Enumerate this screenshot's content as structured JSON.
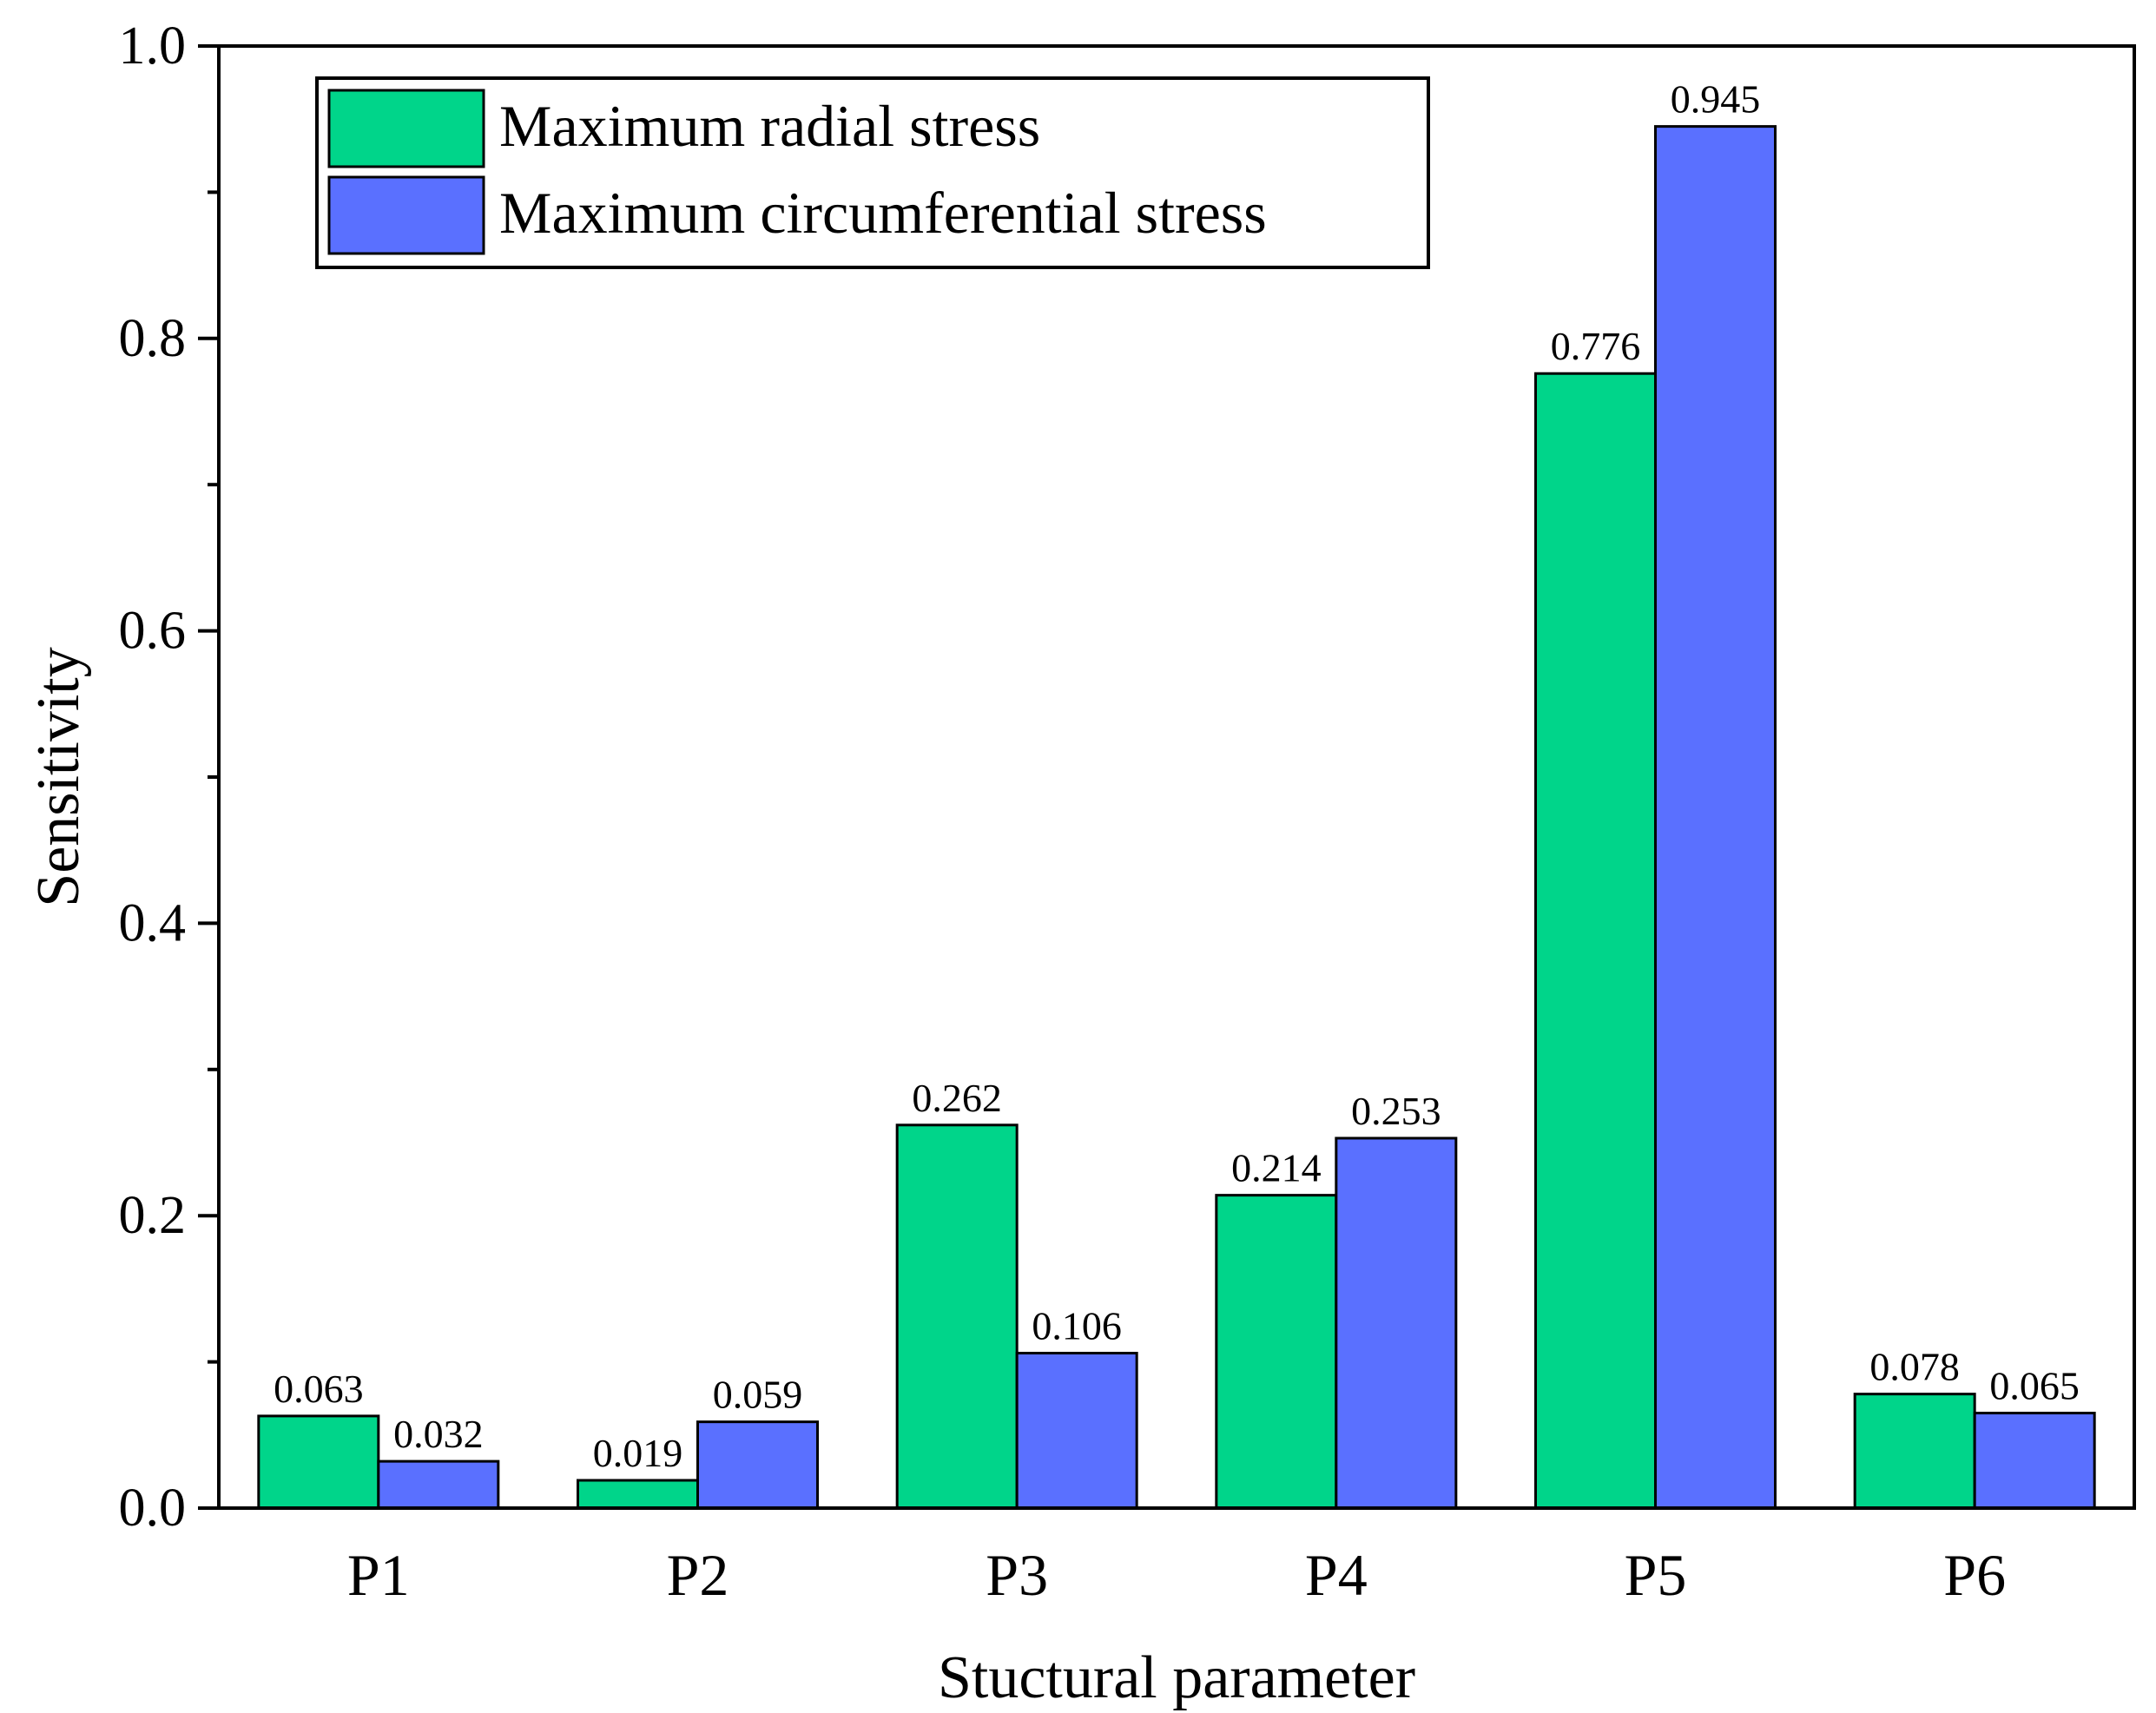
{
  "chart_data": {
    "type": "bar",
    "title": "",
    "xlabel": "Stuctural parameter",
    "ylabel": "Sensitivity",
    "categories": [
      "P1",
      "P2",
      "P3",
      "P4",
      "P5",
      "P6"
    ],
    "series": [
      {
        "name": "Maximum radial stress",
        "color": "#00d58a",
        "values": [
          0.063,
          0.019,
          0.262,
          0.214,
          0.776,
          0.078
        ],
        "labels": [
          "0.063",
          "0.019",
          "0.262",
          "0.214",
          "0.776",
          "0.078"
        ]
      },
      {
        "name": "Maximum circumferential stress",
        "color": "#5a70ff",
        "values": [
          0.032,
          0.059,
          0.106,
          0.253,
          0.945,
          0.065
        ],
        "labels": [
          "0.032",
          "0.059",
          "0.106",
          "0.253",
          "0.945",
          "0.065"
        ]
      }
    ],
    "ylim": [
      0,
      1.0
    ],
    "yticks": [
      0.0,
      0.2,
      0.4,
      0.6,
      0.8,
      1.0
    ],
    "ytick_labels": [
      "0.0",
      "0.2",
      "0.4",
      "0.6",
      "0.8",
      "1.0"
    ],
    "grid": false,
    "legend_position": "top-left"
  }
}
